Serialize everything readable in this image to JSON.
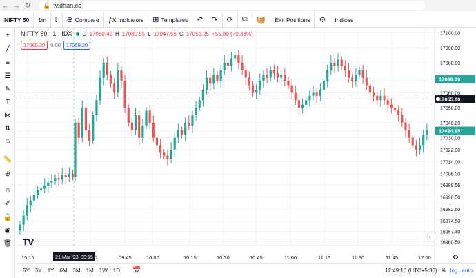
{
  "browser": {
    "back_icon": "arrow-left-icon",
    "forward_icon": "arrow-right-icon",
    "reload_icon": "reload-icon",
    "url": "tv.dhan.co"
  },
  "toolbar": {
    "symbol": "NIFTY 50",
    "interval": "1m",
    "compare_label": "Compare",
    "indicators_label": "Indicators",
    "templates_label": "Templates",
    "exit_positions_label": "Exit Positions",
    "indices_label": "Indices"
  },
  "legend": {
    "name": "NIFTY 50 · 1 · IDX",
    "o_label": "O",
    "o": "17060.40",
    "h_label": "H",
    "h": "17080.55",
    "l_label": "L",
    "l": "17047.55",
    "c_label": "C",
    "c": "17059.25",
    "chg": "+55.80 (+0.33%)",
    "box_left": "17069.20",
    "box_mid": "0.00",
    "box_right": "17069.20"
  },
  "chart_data": {
    "type": "candlestick",
    "x_ticks": [
      "15:15",
      "09:30",
      "09:45",
      "10:00",
      "10:15",
      "10:30",
      "10:45",
      "11:00",
      "11:15",
      "11:30",
      "11:45",
      "12:00"
    ],
    "cursor_date_label": "21 Mar '23",
    "cursor_time_label": "09:15",
    "y_ticks": [
      "17100.00",
      "17090.00",
      "17080.00",
      "17069.20",
      "17060.00",
      "17055.80",
      "17050.00",
      "17040.00",
      "17034.65",
      "17030.00",
      "17022.00",
      "17014.00",
      "17006.00",
      "16998.56",
      "16990.50",
      "16982.50",
      "16974.50",
      "16967.40",
      "16960.50"
    ],
    "price_labels": [
      {
        "text": "17069.20",
        "color": "#26a69a"
      },
      {
        "text": "17055.80",
        "color": "#131722"
      },
      {
        "text": "17034.65",
        "color": "#26a69a"
      }
    ],
    "ylim": [
      16958,
      17103
    ],
    "close_series_prev_day": [
      16972,
      16978,
      16985,
      16988,
      16992,
      16995,
      16996,
      16998,
      17000,
      17001,
      17003,
      17002,
      17005,
      17004,
      17006,
      17004
    ],
    "close_series_today": [
      17040,
      17030,
      17050,
      17035,
      17028,
      17045,
      17055,
      17070,
      17080,
      17072,
      17066,
      17060,
      17075,
      17068,
      17050,
      17040,
      17035,
      17045,
      17030,
      17038,
      17048,
      17040,
      17030,
      17025,
      17020,
      17018,
      17016,
      17022,
      17030,
      17035,
      17032,
      17040,
      17038,
      17045,
      17050,
      17055,
      17062,
      17070,
      17066,
      17072,
      17068,
      17075,
      17080,
      17078,
      17083,
      17085,
      17080,
      17075,
      17070,
      17065,
      17060,
      17062,
      17068,
      17072,
      17070,
      17075,
      17073,
      17070,
      17072,
      17068,
      17065,
      17060,
      17055,
      17050,
      17052,
      17055,
      17058,
      17060,
      17058,
      17062,
      17068,
      17075,
      17080,
      17078,
      17082,
      17078,
      17075,
      17070,
      17068,
      17072,
      17075,
      17070,
      17065,
      17060,
      17058,
      17055,
      17058,
      17055,
      17052,
      17050,
      17048,
      17045,
      17040,
      17035,
      17030,
      17025,
      17022,
      17025,
      17032,
      17035
    ],
    "colors": {
      "up": "#26a69a",
      "down": "#ef5350"
    }
  },
  "bottom": {
    "ranges": [
      "5Y",
      "3Y",
      "1Y",
      "6M",
      "3M",
      "1M",
      "1W",
      "1D"
    ],
    "time": "12:49:10 (UTC+5:30)",
    "pct": "%",
    "log": "log",
    "auto": "auto"
  }
}
